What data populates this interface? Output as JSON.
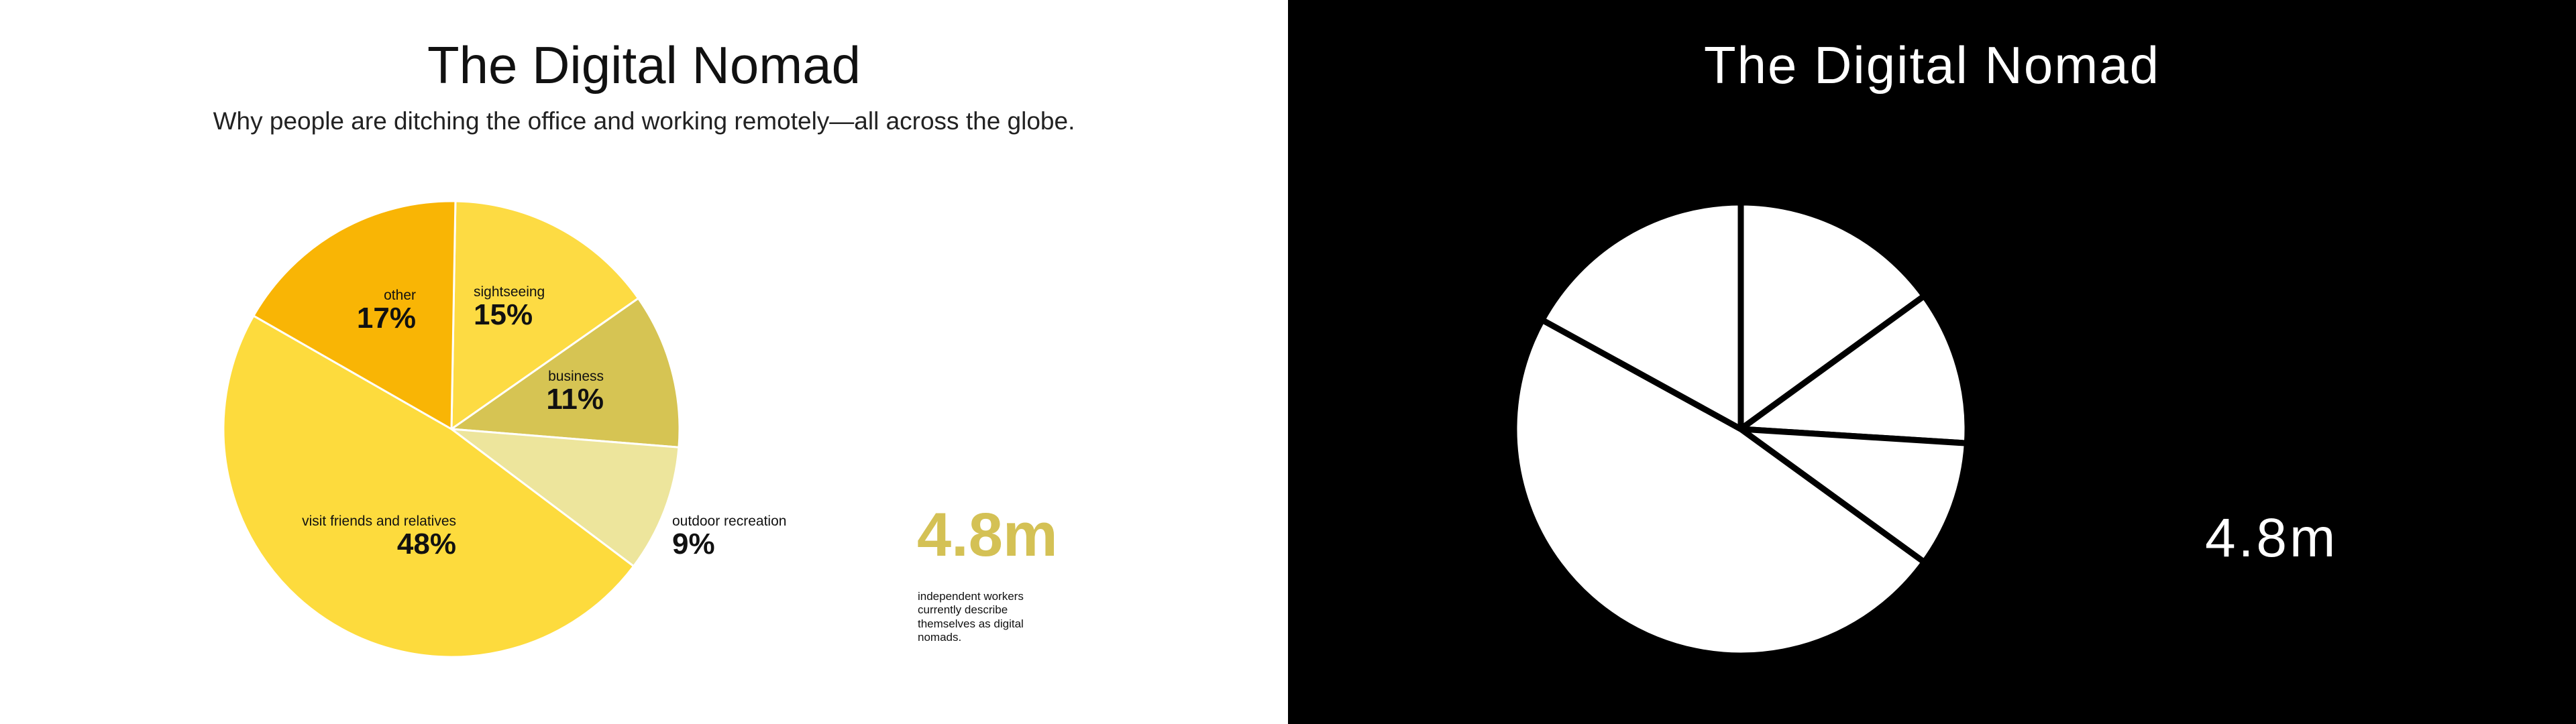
{
  "title": "The Digital Nomad",
  "subtitle": "Why people are ditching the office and working remotely—all across the globe.",
  "stat": {
    "value": "4.8m",
    "description": "independent workers currently describe themselves as digital nomads."
  },
  "colors": {
    "sightseeing": "#fddb43",
    "business": "#d6c453",
    "outdoor_recreation": "#ede59c",
    "visit_friends_and_relatives": "#fddb3d",
    "other": "#f9b505",
    "accent": "#d4c155"
  },
  "chart_data": {
    "type": "pie",
    "title": "The Digital Nomad",
    "subtitle": "Why people are ditching the office and working remotely—all across the globe.",
    "slices": [
      {
        "label": "sightseeing",
        "value": 15,
        "display": "15%",
        "color": "#fddb43"
      },
      {
        "label": "business",
        "value": 11,
        "display": "11%",
        "color": "#d6c453"
      },
      {
        "label": "outdoor recreation",
        "value": 9,
        "display": "9%",
        "color": "#ede59c"
      },
      {
        "label": "visit friends and relatives",
        "value": 48,
        "display": "48%",
        "color": "#fddb3d"
      },
      {
        "label": "other",
        "value": 17,
        "display": "17%",
        "color": "#f9b505"
      }
    ]
  }
}
